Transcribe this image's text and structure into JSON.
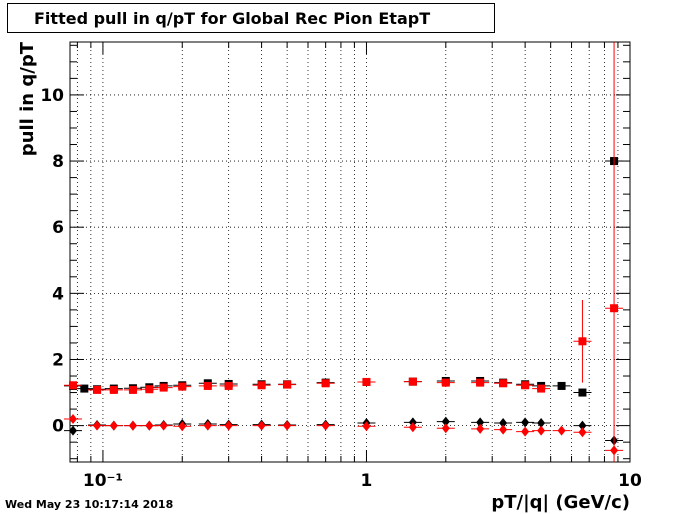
{
  "title": "Fitted pull in q/pT for Global Rec Pion EtapT",
  "timestamp": "Wed May 23 10:17:14 2018",
  "chart_data": {
    "type": "scatter",
    "xlabel": "pT/|q| (GeV/c)",
    "ylabel": "pull in q/pT",
    "x_scale": "log",
    "xlim": [
      0.075,
      10
    ],
    "ylim": [
      -1.1,
      11.6
    ],
    "grid": true,
    "x_major_ticks": [
      {
        "v": 0.1,
        "label": "10⁻¹"
      },
      {
        "v": 1,
        "label": "1"
      },
      {
        "v": 10,
        "label": "10"
      }
    ],
    "y_ticks": [
      0,
      2,
      4,
      6,
      8,
      10
    ],
    "series": [
      {
        "marker": "square",
        "color": "#000000",
        "points": [
          [
            0.077,
            1.2
          ],
          [
            0.085,
            1.12
          ],
          [
            0.095,
            1.1
          ],
          [
            0.11,
            1.12
          ],
          [
            0.13,
            1.13
          ],
          [
            0.15,
            1.16
          ],
          [
            0.17,
            1.2
          ],
          [
            0.2,
            1.22
          ],
          [
            0.25,
            1.28
          ],
          [
            0.3,
            1.26
          ],
          [
            0.4,
            1.25
          ],
          [
            0.5,
            1.25
          ],
          [
            0.7,
            1.3
          ],
          [
            1.0,
            1.32
          ],
          [
            1.5,
            1.33
          ],
          [
            2.0,
            1.35
          ],
          [
            2.7,
            1.35
          ],
          [
            3.3,
            1.3
          ],
          [
            4.0,
            1.25
          ],
          [
            4.6,
            1.2
          ],
          [
            5.5,
            1.2
          ],
          [
            6.6,
            1.0
          ],
          [
            8.7,
            8.0
          ]
        ]
      },
      {
        "marker": "square",
        "color": "#ff0000",
        "points": [
          [
            0.077,
            1.22
          ],
          [
            0.095,
            1.08
          ],
          [
            0.11,
            1.08
          ],
          [
            0.13,
            1.08
          ],
          [
            0.15,
            1.1
          ],
          [
            0.17,
            1.15
          ],
          [
            0.2,
            1.18
          ],
          [
            0.25,
            1.2
          ],
          [
            0.3,
            1.2
          ],
          [
            0.4,
            1.22
          ],
          [
            0.5,
            1.24
          ],
          [
            0.7,
            1.28
          ],
          [
            1.0,
            1.32
          ],
          [
            1.5,
            1.33
          ],
          [
            2.0,
            1.3
          ],
          [
            2.7,
            1.3
          ],
          [
            3.3,
            1.28
          ],
          [
            4.0,
            1.22
          ],
          [
            4.6,
            1.12
          ],
          [
            6.6,
            2.55
          ],
          [
            8.7,
            3.55
          ]
        ]
      },
      {
        "marker": "diamond",
        "color": "#000000",
        "points": [
          [
            0.077,
            -0.15
          ],
          [
            0.095,
            0.02
          ],
          [
            0.11,
            0.0
          ],
          [
            0.13,
            0.0
          ],
          [
            0.15,
            0.0
          ],
          [
            0.17,
            0.02
          ],
          [
            0.2,
            0.05
          ],
          [
            0.25,
            0.05
          ],
          [
            0.3,
            0.03
          ],
          [
            0.4,
            0.03
          ],
          [
            0.5,
            0.02
          ],
          [
            0.7,
            0.03
          ],
          [
            1.0,
            0.08
          ],
          [
            1.5,
            0.1
          ],
          [
            2.0,
            0.12
          ],
          [
            2.7,
            0.1
          ],
          [
            3.3,
            0.08
          ],
          [
            4.0,
            0.1
          ],
          [
            4.6,
            0.08
          ],
          [
            6.6,
            0.0
          ],
          [
            8.7,
            -0.45
          ]
        ]
      },
      {
        "marker": "diamond",
        "color": "#ff0000",
        "points": [
          [
            0.077,
            0.2
          ],
          [
            0.095,
            0.0
          ],
          [
            0.11,
            0.0
          ],
          [
            0.13,
            0.0
          ],
          [
            0.15,
            0.0
          ],
          [
            0.17,
            0.0
          ],
          [
            0.2,
            -0.02
          ],
          [
            0.25,
            0.0
          ],
          [
            0.3,
            0.0
          ],
          [
            0.4,
            0.0
          ],
          [
            0.5,
            0.0
          ],
          [
            0.7,
            0.0
          ],
          [
            1.0,
            -0.02
          ],
          [
            1.5,
            -0.05
          ],
          [
            2.0,
            -0.08
          ],
          [
            2.7,
            -0.1
          ],
          [
            3.3,
            -0.12
          ],
          [
            4.0,
            -0.18
          ],
          [
            4.6,
            -0.15
          ],
          [
            5.5,
            -0.15
          ],
          [
            6.6,
            -0.2
          ],
          [
            8.7,
            -0.75
          ]
        ]
      }
    ]
  }
}
